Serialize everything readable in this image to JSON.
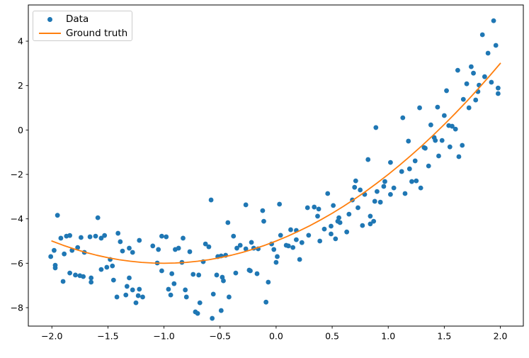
{
  "chart_data": {
    "type": "scatter",
    "title": "",
    "xlabel": "",
    "ylabel": "",
    "grid": false,
    "legend_position": "upper left",
    "xlim": [
      -2.21,
      2.205
    ],
    "ylim": [
      -8.83,
      5.63
    ],
    "x_ticks": {
      "values": [
        -2.0,
        -1.5,
        -1.0,
        -0.5,
        0.0,
        0.5,
        1.0,
        1.5,
        2.0
      ],
      "labels": [
        "−2.0",
        "−1.5",
        "−1.0",
        "−0.5",
        "0.0",
        "0.5",
        "1.0",
        "1.5",
        "2.0"
      ]
    },
    "y_ticks": {
      "values": [
        -8,
        -6,
        -4,
        -2,
        0,
        2,
        4
      ],
      "labels": [
        "−8",
        "−6",
        "−4",
        "−2",
        "0",
        "2",
        "4"
      ]
    },
    "series": [
      {
        "name": "Data",
        "kind": "scatter",
        "color": "#1f77b4",
        "marker_radius": 3.4,
        "points": [
          [
            -2.01,
            -5.7
          ],
          [
            -1.98,
            -5.42
          ],
          [
            -1.97,
            -6.09
          ],
          [
            -1.97,
            -6.21
          ],
          [
            -1.95,
            -3.84
          ],
          [
            -1.92,
            -4.87
          ],
          [
            -1.9,
            -6.82
          ],
          [
            -1.89,
            -5.58
          ],
          [
            -1.87,
            -4.78
          ],
          [
            -1.84,
            -4.75
          ],
          [
            -1.84,
            -6.44
          ],
          [
            -1.82,
            -5.42
          ],
          [
            -1.79,
            -6.53
          ],
          [
            -1.77,
            -5.29
          ],
          [
            -1.75,
            -6.56
          ],
          [
            -1.74,
            -4.84
          ],
          [
            -1.72,
            -6.6
          ],
          [
            -1.71,
            -5.51
          ],
          [
            -1.66,
            -4.81
          ],
          [
            -1.65,
            -6.66
          ],
          [
            -1.65,
            -6.85
          ],
          [
            -1.61,
            -4.78
          ],
          [
            -1.59,
            -3.95
          ],
          [
            -1.56,
            -4.87
          ],
          [
            -1.56,
            -6.28
          ],
          [
            -1.53,
            -4.75
          ],
          [
            -1.51,
            -6.18
          ],
          [
            -1.48,
            -5.83
          ],
          [
            -1.46,
            -6.12
          ],
          [
            -1.45,
            -6.76
          ],
          [
            -1.42,
            -7.52
          ],
          [
            -1.41,
            -4.65
          ],
          [
            -1.39,
            -5.03
          ],
          [
            -1.37,
            -5.45
          ],
          [
            -1.34,
            -7.43
          ],
          [
            -1.33,
            -7.04
          ],
          [
            -1.31,
            -5.32
          ],
          [
            -1.31,
            -6.66
          ],
          [
            -1.28,
            -5.51
          ],
          [
            -1.28,
            -7.2
          ],
          [
            -1.25,
            -7.78
          ],
          [
            -1.23,
            -7.46
          ],
          [
            -1.22,
            -4.97
          ],
          [
            -1.22,
            -7.17
          ],
          [
            -1.19,
            -7.52
          ],
          [
            -1.1,
            -5.22
          ],
          [
            -1.06,
            -5.99
          ],
          [
            -1.05,
            -5.38
          ],
          [
            -1.02,
            -4.78
          ],
          [
            -1.02,
            -6.34
          ],
          [
            -0.98,
            -4.81
          ],
          [
            -0.96,
            -7.17
          ],
          [
            -0.94,
            -7.43
          ],
          [
            -0.93,
            -6.47
          ],
          [
            -0.91,
            -6.92
          ],
          [
            -0.9,
            -5.38
          ],
          [
            -0.87,
            -5.32
          ],
          [
            -0.84,
            -5.96
          ],
          [
            -0.83,
            -4.87
          ],
          [
            -0.81,
            -7.2
          ],
          [
            -0.8,
            -7.52
          ],
          [
            -0.77,
            -5.48
          ],
          [
            -0.74,
            -6.5
          ],
          [
            -0.72,
            -8.19
          ],
          [
            -0.7,
            -8.26
          ],
          [
            -0.69,
            -6.53
          ],
          [
            -0.68,
            -7.78
          ],
          [
            -0.65,
            -5.93
          ],
          [
            -0.63,
            -5.13
          ],
          [
            -0.6,
            -5.26
          ],
          [
            -0.58,
            -3.15
          ],
          [
            -0.57,
            -8.48
          ],
          [
            -0.56,
            -7.39
          ],
          [
            -0.53,
            -6.53
          ],
          [
            -0.52,
            -5.7
          ],
          [
            -0.49,
            -5.67
          ],
          [
            -0.49,
            -8.13
          ],
          [
            -0.48,
            -6.63
          ],
          [
            -0.47,
            -6.79
          ],
          [
            -0.45,
            -5.64
          ],
          [
            -0.43,
            -4.17
          ],
          [
            -0.42,
            -7.52
          ],
          [
            -0.38,
            -4.78
          ],
          [
            -0.36,
            -6.44
          ],
          [
            -0.35,
            -5.32
          ],
          [
            -0.32,
            -5.19
          ],
          [
            -0.27,
            -3.37
          ],
          [
            -0.27,
            -5.35
          ],
          [
            -0.24,
            -6.31
          ],
          [
            -0.23,
            -6.34
          ],
          [
            -0.22,
            -5.06
          ],
          [
            -0.2,
            -5.32
          ],
          [
            -0.17,
            -6.47
          ],
          [
            -0.16,
            -5.35
          ],
          [
            -0.12,
            -3.63
          ],
          [
            -0.11,
            -4.11
          ],
          [
            -0.09,
            -7.75
          ],
          [
            -0.07,
            -6.85
          ],
          [
            -0.04,
            -5.13
          ],
          [
            -0.02,
            -5.38
          ],
          [
            0.0,
            -5.96
          ],
          [
            0.01,
            -5.7
          ],
          [
            0.03,
            -3.34
          ],
          [
            0.04,
            -4.74
          ],
          [
            0.09,
            -5.19
          ],
          [
            0.11,
            -5.22
          ],
          [
            0.13,
            -4.49
          ],
          [
            0.15,
            -5.29
          ],
          [
            0.18,
            -4.52
          ],
          [
            0.18,
            -4.94
          ],
          [
            0.21,
            -5.83
          ],
          [
            0.23,
            -5.07
          ],
          [
            0.28,
            -3.5
          ],
          [
            0.29,
            -4.74
          ],
          [
            0.34,
            -3.47
          ],
          [
            0.37,
            -3.88
          ],
          [
            0.38,
            -3.56
          ],
          [
            0.39,
            -5.0
          ],
          [
            0.43,
            -4.46
          ],
          [
            0.46,
            -2.86
          ],
          [
            0.49,
            -4.33
          ],
          [
            0.49,
            -4.68
          ],
          [
            0.51,
            -3.4
          ],
          [
            0.53,
            -4.9
          ],
          [
            0.55,
            -4.11
          ],
          [
            0.56,
            -3.95
          ],
          [
            0.57,
            -4.17
          ],
          [
            0.63,
            -4.59
          ],
          [
            0.65,
            -3.79
          ],
          [
            0.68,
            -3.15
          ],
          [
            0.7,
            -2.58
          ],
          [
            0.71,
            -2.29
          ],
          [
            0.73,
            -3.5
          ],
          [
            0.75,
            -2.7
          ],
          [
            0.77,
            -4.3
          ],
          [
            0.79,
            -2.9
          ],
          [
            0.82,
            -1.33
          ],
          [
            0.84,
            -3.88
          ],
          [
            0.84,
            -4.23
          ],
          [
            0.87,
            -4.11
          ],
          [
            0.88,
            -3.21
          ],
          [
            0.89,
            0.11
          ],
          [
            0.9,
            -2.77
          ],
          [
            0.93,
            -3.25
          ],
          [
            0.96,
            -2.54
          ],
          [
            0.97,
            -2.32
          ],
          [
            1.02,
            -1.46
          ],
          [
            1.02,
            -2.9
          ],
          [
            1.05,
            -2.61
          ],
          [
            1.12,
            -1.87
          ],
          [
            1.13,
            0.55
          ],
          [
            1.15,
            -2.86
          ],
          [
            1.18,
            -0.5
          ],
          [
            1.19,
            -1.75
          ],
          [
            1.21,
            -2.32
          ],
          [
            1.24,
            -1.39
          ],
          [
            1.25,
            -2.29
          ],
          [
            1.28,
            1.0
          ],
          [
            1.29,
            -2.61
          ],
          [
            1.32,
            -0.79
          ],
          [
            1.33,
            -0.82
          ],
          [
            1.36,
            -1.62
          ],
          [
            1.38,
            0.23
          ],
          [
            1.41,
            -0.34
          ],
          [
            1.42,
            -0.47
          ],
          [
            1.44,
            1.03
          ],
          [
            1.45,
            -1.17
          ],
          [
            1.48,
            -0.47
          ],
          [
            1.5,
            0.65
          ],
          [
            1.52,
            1.77
          ],
          [
            1.54,
            0.2
          ],
          [
            1.55,
            -0.76
          ],
          [
            1.57,
            0.17
          ],
          [
            1.6,
            0.04
          ],
          [
            1.62,
            2.69
          ],
          [
            1.63,
            -1.2
          ],
          [
            1.66,
            -0.69
          ],
          [
            1.67,
            1.38
          ],
          [
            1.7,
            2.08
          ],
          [
            1.72,
            1.0
          ],
          [
            1.74,
            2.85
          ],
          [
            1.76,
            2.56
          ],
          [
            1.78,
            1.35
          ],
          [
            1.8,
            1.73
          ],
          [
            1.81,
            2.02
          ],
          [
            1.84,
            4.29
          ],
          [
            1.86,
            2.4
          ],
          [
            1.89,
            3.46
          ],
          [
            1.92,
            2.15
          ],
          [
            1.94,
            4.92
          ],
          [
            1.96,
            3.81
          ],
          [
            1.98,
            1.64
          ],
          [
            1.98,
            1.89
          ]
        ]
      },
      {
        "name": "Ground truth",
        "kind": "line",
        "color": "#ff7f0e",
        "line_width": 1.8,
        "points": [
          [
            -2.0,
            -5.0
          ],
          [
            -1.9,
            -5.19
          ],
          [
            -1.8,
            -5.36
          ],
          [
            -1.7,
            -5.51
          ],
          [
            -1.6,
            -5.64
          ],
          [
            -1.5,
            -5.75
          ],
          [
            -1.4,
            -5.84
          ],
          [
            -1.3,
            -5.91
          ],
          [
            -1.2,
            -5.96
          ],
          [
            -1.1,
            -5.99
          ],
          [
            -1.0,
            -6.0
          ],
          [
            -0.9,
            -5.99
          ],
          [
            -0.8,
            -5.96
          ],
          [
            -0.7,
            -5.91
          ],
          [
            -0.6,
            -5.84
          ],
          [
            -0.5,
            -5.75
          ],
          [
            -0.4,
            -5.64
          ],
          [
            -0.3,
            -5.51
          ],
          [
            -0.2,
            -5.36
          ],
          [
            -0.1,
            -5.19
          ],
          [
            0.0,
            -5.0
          ],
          [
            0.1,
            -4.79
          ],
          [
            0.2,
            -4.56
          ],
          [
            0.3,
            -4.31
          ],
          [
            0.4,
            -4.04
          ],
          [
            0.5,
            -3.75
          ],
          [
            0.6,
            -3.44
          ],
          [
            0.7,
            -3.11
          ],
          [
            0.8,
            -2.76
          ],
          [
            0.9,
            -2.39
          ],
          [
            1.0,
            -2.0
          ],
          [
            1.1,
            -1.59
          ],
          [
            1.2,
            -1.16
          ],
          [
            1.3,
            -0.71
          ],
          [
            1.4,
            -0.24
          ],
          [
            1.5,
            0.25
          ],
          [
            1.6,
            0.76
          ],
          [
            1.7,
            1.29
          ],
          [
            1.8,
            1.84
          ],
          [
            1.9,
            2.41
          ],
          [
            2.0,
            3.0
          ]
        ]
      }
    ]
  },
  "legend": {
    "data_label": "Data",
    "ground_truth_label": "Ground truth"
  },
  "colors": {
    "scatter": "#1f77b4",
    "line": "#ff7f0e",
    "spine": "#000000",
    "legend_border": "#cccccc"
  }
}
